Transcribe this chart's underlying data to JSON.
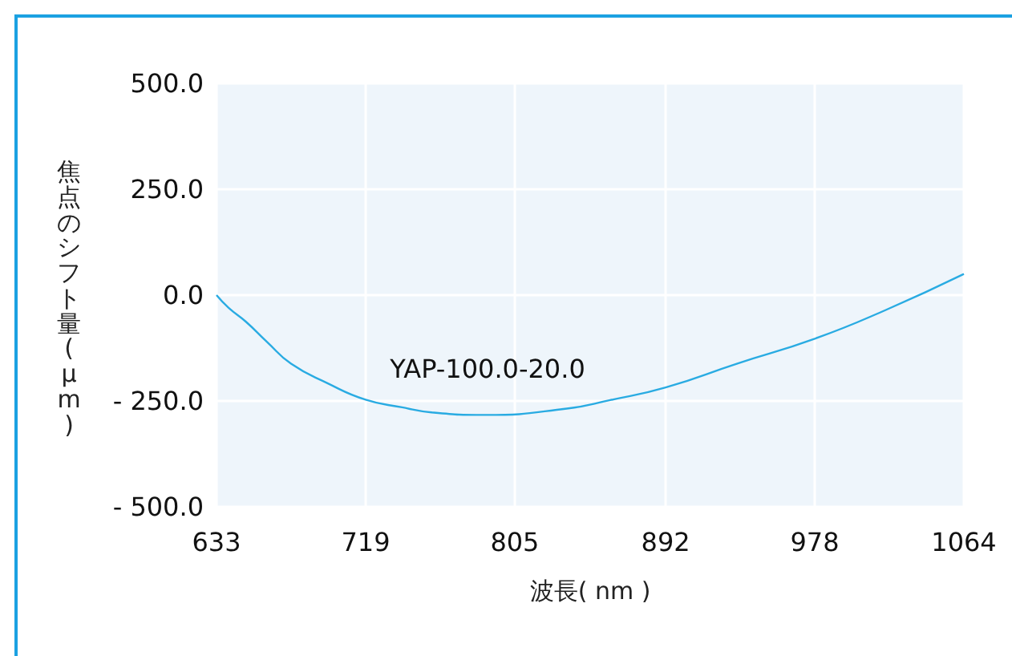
{
  "chart_data": {
    "type": "line",
    "xlabel": "波長( nm )",
    "ylabel": "焦点のシフト量(μm)",
    "x": [
      633,
      640,
      650,
      662,
      676,
      697,
      719,
      740,
      757,
      788,
      835,
      860,
      892,
      933,
      978,
      1019,
      1064
    ],
    "series": [
      {
        "name": "YAP-100.0-20.0",
        "color": "#29abe2",
        "values": [
          0,
          -30,
          -63,
          -110,
          -162,
          -208,
          -247,
          -265,
          -277,
          -283,
          -268,
          -248,
          -218,
          -162,
          -103,
          -35,
          50
        ]
      }
    ],
    "xlim": [
      633,
      1064
    ],
    "xticks": [
      633,
      719,
      805,
      892,
      978,
      1064
    ],
    "ylim": [
      -500,
      500
    ],
    "yticks": [
      {
        "value": -500,
        "label": "- 500.0"
      },
      {
        "value": -250,
        "label": "- 250.0"
      },
      {
        "value": 0,
        "label": "0.0"
      },
      {
        "value": 250,
        "label": "250.0"
      },
      {
        "value": 500,
        "label": "500.0"
      }
    ],
    "grid": true,
    "marker": "none",
    "line_style": "solid",
    "legend": false
  }
}
